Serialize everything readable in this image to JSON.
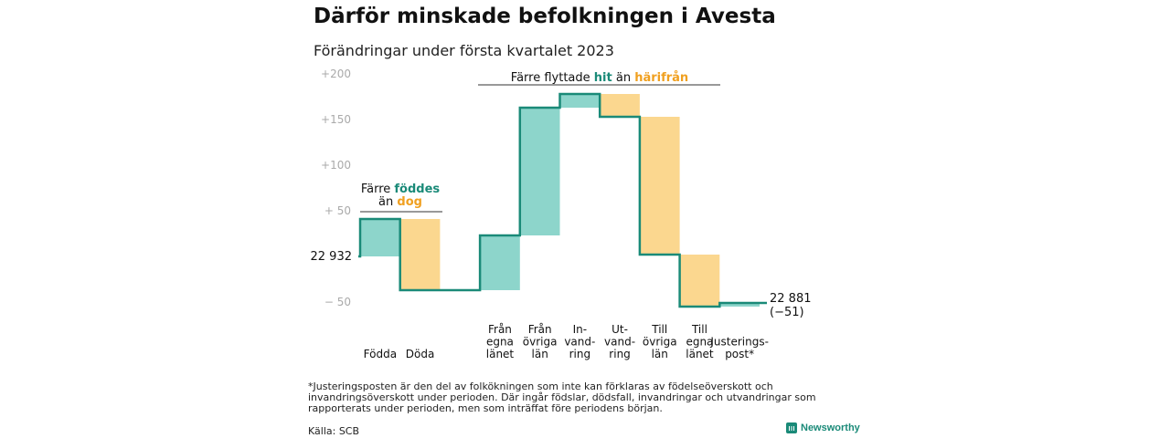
{
  "title": "Därför minskade befolkningen i Avesta",
  "subtitle": "Förändringar under första kvartalet 2023",
  "chart_data": {
    "type": "waterfall",
    "start": {
      "label": "22 932",
      "value": 22932
    },
    "end": {
      "label_line1": "22 881",
      "label_line2": "(−51)",
      "value": 22881,
      "change": -51
    },
    "y_axis": {
      "ticks": [
        {
          "value": 200,
          "label": "+200"
        },
        {
          "value": 150,
          "label": "+150"
        },
        {
          "value": 100,
          "label": "+100"
        },
        {
          "value": 50,
          "label": "+ 50"
        },
        {
          "value": -50,
          "label": "− 50"
        }
      ],
      "range": [
        -60,
        200
      ]
    },
    "steps": [
      {
        "label": [
          "Födda"
        ],
        "from": 0,
        "to": 41,
        "color": "#8dd5cb"
      },
      {
        "label": [
          "Döda"
        ],
        "from": 41,
        "to": -37,
        "color": "#fbd78f"
      },
      {
        "label": [],
        "from": -37,
        "to": -37,
        "color": ""
      },
      {
        "label": [
          "Från",
          "egna",
          "länet"
        ],
        "from": -37,
        "to": 23,
        "color": "#8dd5cb"
      },
      {
        "label": [
          "Från",
          "övriga",
          "län"
        ],
        "from": 23,
        "to": 163,
        "color": "#8dd5cb"
      },
      {
        "label": [
          "In-",
          "vand-",
          "ring"
        ],
        "from": 163,
        "to": 178,
        "color": "#8dd5cb"
      },
      {
        "label": [
          "Ut-",
          "vand-",
          "ring"
        ],
        "from": 178,
        "to": 153,
        "color": "#fbd78f"
      },
      {
        "label": [
          "Till",
          "övriga",
          "län"
        ],
        "from": 153,
        "to": 2,
        "color": "#fbd78f"
      },
      {
        "label": [
          "Till",
          "egna",
          "länet"
        ],
        "from": 2,
        "to": -55,
        "color": "#fbd78f"
      },
      {
        "label": [
          "Justerings-",
          "post*"
        ],
        "from": -55,
        "to": -51,
        "color": "#8dd5cb"
      }
    ],
    "annotations": [
      {
        "parts": [
          {
            "t": "Färre ",
            "c": "#111111"
          },
          {
            "t": "föddes",
            "c": "#1a8a78"
          }
        ],
        "parts2": [
          {
            "t": "än ",
            "c": "#111111"
          },
          {
            "t": "dog",
            "c": "#f0a020"
          }
        ]
      },
      {
        "parts": [
          {
            "t": "Färre flyttade ",
            "c": "#111111"
          },
          {
            "t": "hit",
            "c": "#1a8a78"
          },
          {
            "t": " än ",
            "c": "#111111"
          },
          {
            "t": "härifrån",
            "c": "#f0a020"
          }
        ]
      }
    ],
    "colors": {
      "increase": "#8dd5cb",
      "decrease": "#fbd78f",
      "line": "#1a8a78",
      "tick": "#aaaaaa"
    }
  },
  "footnote": "*Justeringsposten är den del av folkökningen som inte kan förklaras av födelseöverskott och invandringsöverskott under perioden. Där ingår födslar, dödsfall, invandringar och utvandringar som rapporterats under perioden, men som inträffat före periodens början.",
  "source": "Källa: SCB",
  "brand": "Newsworthy"
}
